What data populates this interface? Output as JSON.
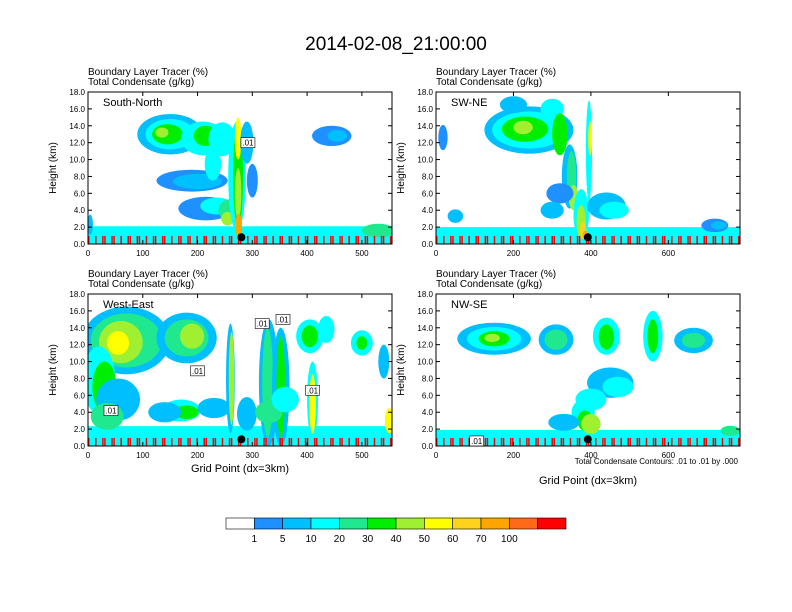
{
  "title": "2014-02-08_21:00:00",
  "footnote": "Total Condensate Contours: .01 to .01 by .000",
  "colorbar": {
    "colors": [
      "#ffffff",
      "#1e90ff",
      "#00bfff",
      "#00ffff",
      "#1fe88f",
      "#00ee00",
      "#a0f032",
      "#ffff00",
      "#ffd21e",
      "#ffa500",
      "#ff6a19",
      "#ff0000"
    ],
    "labels": [
      "1",
      "5",
      "10",
      "20",
      "30",
      "40",
      "50",
      "60",
      "70",
      "100"
    ]
  },
  "chart_data": [
    {
      "type": "heatmap",
      "panel_label": "South-North",
      "subtitle_lines": [
        "Boundary Layer Tracer   (%)",
        "Total Condensate   (g/kg)"
      ],
      "ylabel": "Height (km)",
      "xlabel": "",
      "xlim": [
        0,
        555
      ],
      "ylim": [
        0,
        18
      ],
      "xticks": [
        "0",
        "100",
        "200",
        "300",
        "400",
        "500"
      ],
      "yticks": [
        "0.0",
        "2.0",
        "4.0",
        "6.0",
        "8.0",
        "10.0",
        "12.0",
        "14.0",
        "16.0",
        "18.0"
      ],
      "contour_labels": [
        {
          "text": ".01",
          "x": 292,
          "y": 12.0
        }
      ],
      "marker": {
        "x": 280,
        "y": 0.8
      }
    },
    {
      "type": "heatmap",
      "panel_label": "SW-NE",
      "subtitle_lines": [
        "Boundary Layer Tracer   (%)",
        "Total Condensate   (g/kg)"
      ],
      "ylabel": "Height (km)",
      "xlabel": "",
      "xlim": [
        0,
        785
      ],
      "ylim": [
        0,
        18
      ],
      "xticks": [
        "0",
        "200",
        "400",
        "600"
      ],
      "yticks": [
        "0.0",
        "2.0",
        "4.0",
        "6.0",
        "8.0",
        "10.0",
        "12.0",
        "14.0",
        "16.0",
        "18.0"
      ],
      "contour_labels": [],
      "marker": {
        "x": 392,
        "y": 0.8
      }
    },
    {
      "type": "heatmap",
      "panel_label": "West-East",
      "subtitle_lines": [
        "Boundary Layer Tracer   (%)",
        "Total Condensate   (g/kg)"
      ],
      "ylabel": "Height (km)",
      "xlabel": "Grid Point (dx=3km)",
      "xlim": [
        0,
        555
      ],
      "ylim": [
        0,
        18
      ],
      "xticks": [
        "0",
        "100",
        "200",
        "300",
        "400",
        "500"
      ],
      "yticks": [
        "0.0",
        "2.0",
        "4.0",
        "6.0",
        "8.0",
        "10.0",
        "12.0",
        "14.0",
        "16.0",
        "18.0"
      ],
      "contour_labels": [
        {
          "text": ".01",
          "x": 42,
          "y": 4.2
        },
        {
          "text": ".01",
          "x": 200,
          "y": 8.9
        },
        {
          "text": ".01",
          "x": 318,
          "y": 14.5
        },
        {
          "text": ".01",
          "x": 356,
          "y": 15.0
        },
        {
          "text": ".01",
          "x": 410,
          "y": 6.6
        }
      ],
      "marker": {
        "x": 280,
        "y": 0.8
      }
    },
    {
      "type": "heatmap",
      "panel_label": "NW-SE",
      "subtitle_lines": [
        "Boundary Layer Tracer   (%)",
        "Total Condensate   (g/kg)"
      ],
      "ylabel": "Height (km)",
      "xlabel": "Grid Point (dx=3km)",
      "xlim": [
        0,
        785
      ],
      "ylim": [
        0,
        18
      ],
      "xticks": [
        "0",
        "200",
        "400",
        "600"
      ],
      "yticks": [
        "0.0",
        "2.0",
        "4.0",
        "6.0",
        "8.0",
        "10.0",
        "12.0",
        "14.0",
        "16.0",
        "18.0"
      ],
      "contour_labels": [
        {
          "text": ".01",
          "x": 105,
          "y": 0.6
        }
      ],
      "marker": {
        "x": 392,
        "y": 0.8
      }
    }
  ]
}
